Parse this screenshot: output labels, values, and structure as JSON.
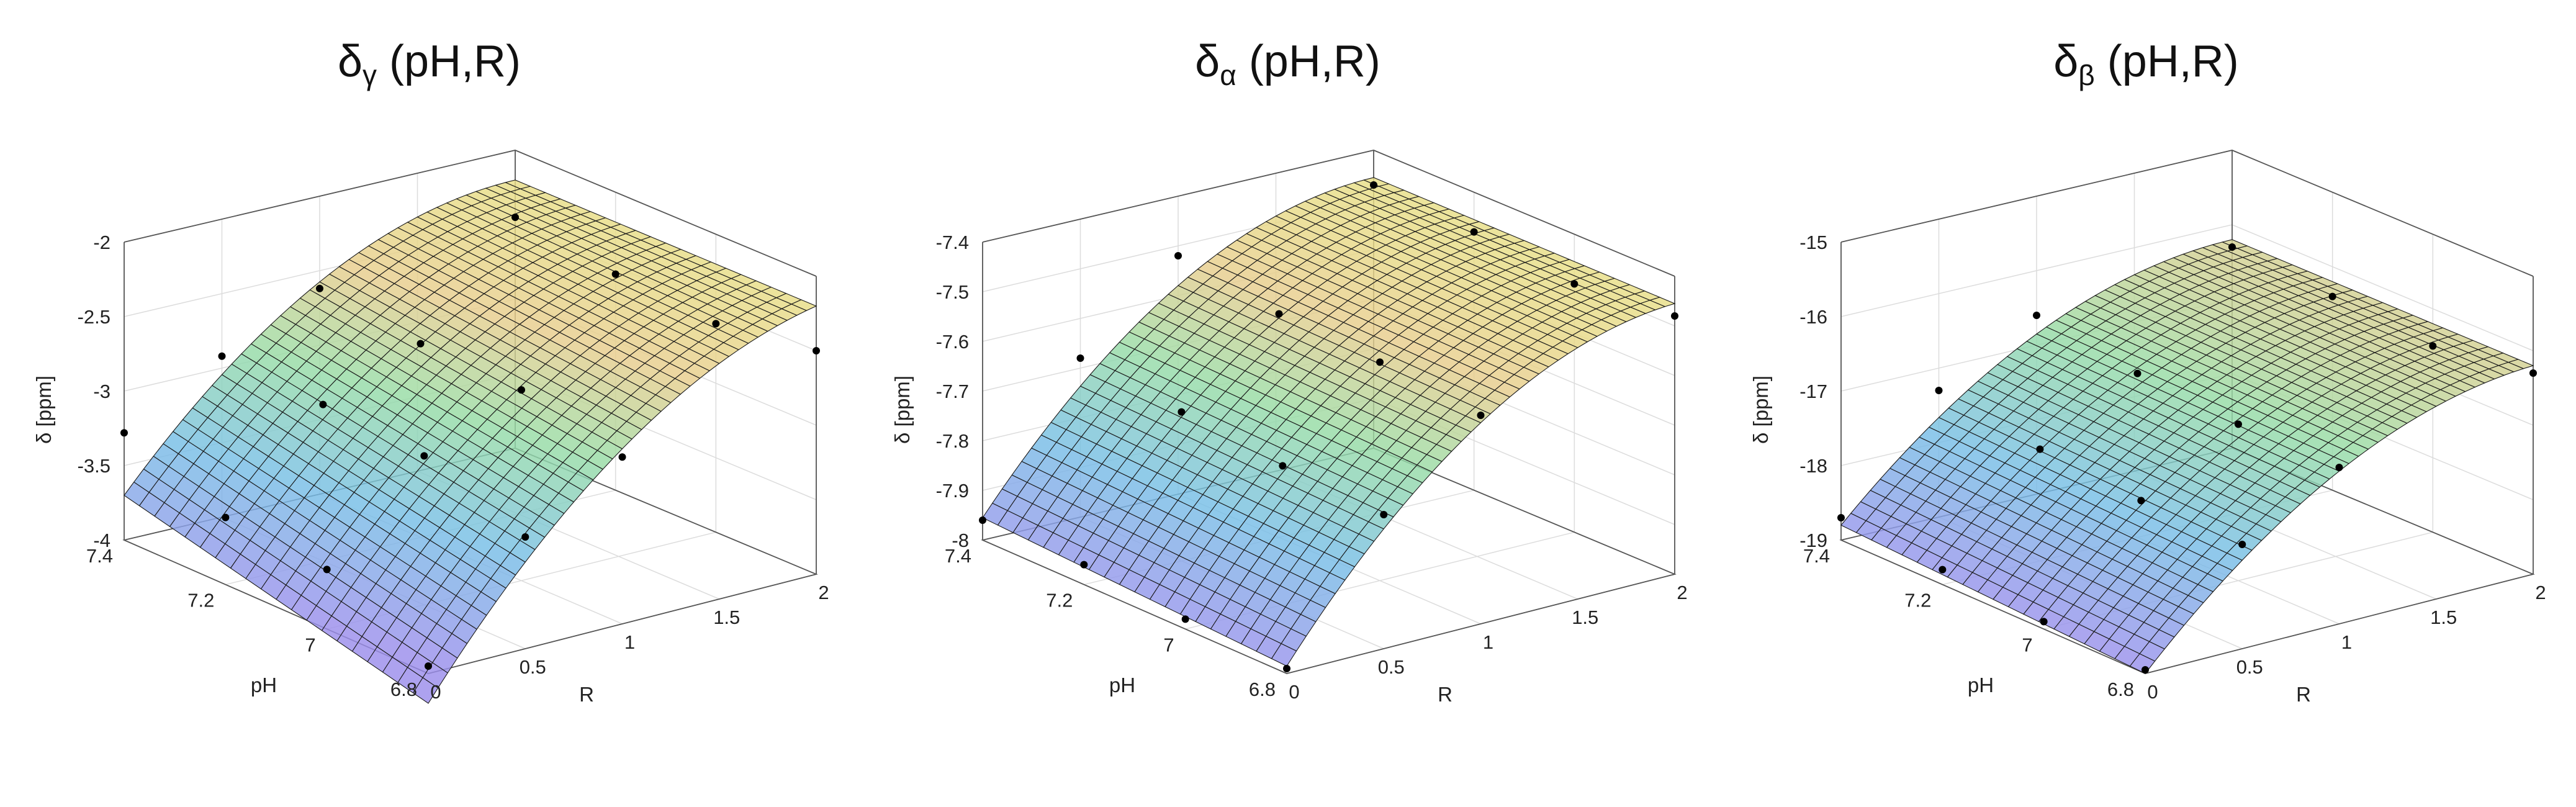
{
  "chart_data": [
    {
      "type": "surface3d",
      "title": {
        "symbol": "δ",
        "sub": "γ",
        "rest": " (pH,R)"
      },
      "xlabel": "R",
      "ylabel": "pH",
      "zlabel": "δ [ppm]",
      "xlim": [
        0,
        2
      ],
      "ylim": [
        6.8,
        7.4
      ],
      "zlim": [
        -4,
        -2
      ],
      "xticks": [
        "0",
        "0.5",
        "1",
        "1.5",
        "2"
      ],
      "yticks": [
        "6.8",
        "7",
        "7.2",
        "7.4"
      ],
      "zticks": [
        "-4",
        "-3.5",
        "-3",
        "-2.5",
        "-2"
      ],
      "grid": true,
      "surface": {
        "z_min": -3.95,
        "z_max_at_R2": -2.45,
        "ph_drop": 0.5
      },
      "points": [
        [
          0,
          7.4,
          -3.28
        ],
        [
          0.5,
          7.4,
          -2.92
        ],
        [
          1,
          7.4,
          -2.62
        ],
        [
          2,
          7.4,
          -2.45
        ],
        [
          0,
          7.2,
          -3.55
        ],
        [
          0.5,
          7.2,
          -2.95
        ],
        [
          1,
          7.2,
          -2.7
        ],
        [
          2,
          7.2,
          -2.55
        ],
        [
          0,
          7,
          -3.6
        ],
        [
          0.5,
          7,
          -3.0
        ],
        [
          1,
          7,
          -2.72
        ],
        [
          2,
          7,
          -2.6
        ],
        [
          0,
          6.8,
          -3.95
        ],
        [
          0.5,
          6.8,
          -3.25
        ],
        [
          1,
          6.8,
          -2.88
        ],
        [
          2,
          6.8,
          -2.5
        ]
      ]
    },
    {
      "type": "surface3d",
      "title": {
        "symbol": "δ",
        "sub": "α",
        "rest": " (pH,R)"
      },
      "xlabel": "R",
      "ylabel": "pH",
      "zlabel": "δ [ppm]",
      "xlim": [
        0,
        2
      ],
      "ylim": [
        6.8,
        7.4
      ],
      "zlim": [
        -8,
        -7.4
      ],
      "xticks": [
        "0",
        "0.5",
        "1",
        "1.5",
        "2"
      ],
      "yticks": [
        "6.8",
        "7",
        "7.2",
        "7.4"
      ],
      "zticks": [
        "-8",
        "-7.9",
        "-7.8",
        "-7.7",
        "-7.6",
        "-7.5",
        "-7.4"
      ],
      "grid": true,
      "surface": {
        "z_min": -7.97,
        "z_max_at_R2": -7.47,
        "ph_drop": 0.03
      },
      "points": [
        [
          0,
          7.4,
          -7.96
        ],
        [
          0.5,
          7.4,
          -7.68
        ],
        [
          1,
          7.4,
          -7.52
        ],
        [
          2,
          7.4,
          -7.47
        ],
        [
          0,
          7.2,
          -7.96
        ],
        [
          0.5,
          7.2,
          -7.7
        ],
        [
          1,
          7.2,
          -7.55
        ],
        [
          2,
          7.2,
          -7.48
        ],
        [
          0,
          7,
          -7.98
        ],
        [
          0.5,
          7,
          -7.72
        ],
        [
          1,
          7,
          -7.56
        ],
        [
          2,
          7,
          -7.5
        ],
        [
          0,
          6.8,
          -7.99
        ],
        [
          0.5,
          6.8,
          -7.73
        ],
        [
          1,
          6.8,
          -7.58
        ],
        [
          2,
          6.8,
          -7.48
        ]
      ]
    },
    {
      "type": "surface3d",
      "title": {
        "symbol": "δ",
        "sub": "β",
        "rest": " (pH,R)"
      },
      "xlabel": "R",
      "ylabel": "pH",
      "zlabel": "δ [ppm]",
      "xlim": [
        0,
        2
      ],
      "ylim": [
        6.8,
        7.4
      ],
      "zlim": [
        -19,
        -15
      ],
      "xticks": [
        "0",
        "0.5",
        "1",
        "1.5",
        "2"
      ],
      "yticks": [
        "6.8",
        "7",
        "7.2",
        "7.4"
      ],
      "zticks": [
        "-19",
        "-18",
        "-17",
        "-16",
        "-15"
      ],
      "grid": true,
      "surface": {
        "z_min": -18.9,
        "z_max_at_R2": -16.3,
        "ph_drop": 0.2
      },
      "points": [
        [
          0,
          7.4,
          -18.7
        ],
        [
          0.5,
          7.4,
          -17.3
        ],
        [
          1,
          7.4,
          -16.6
        ],
        [
          2,
          7.4,
          -16.3
        ],
        [
          0,
          7.2,
          -18.8
        ],
        [
          0.5,
          7.2,
          -17.5
        ],
        [
          1,
          7.2,
          -16.8
        ],
        [
          2,
          7.2,
          -16.4
        ],
        [
          0,
          7,
          -18.9
        ],
        [
          0.5,
          7,
          -17.6
        ],
        [
          1,
          7,
          -16.9
        ],
        [
          2,
          7,
          -16.5
        ],
        [
          0,
          6.8,
          -18.95
        ],
        [
          0.5,
          6.8,
          -17.6
        ],
        [
          1,
          6.8,
          -16.9
        ],
        [
          2,
          6.8,
          -16.3
        ]
      ]
    }
  ]
}
